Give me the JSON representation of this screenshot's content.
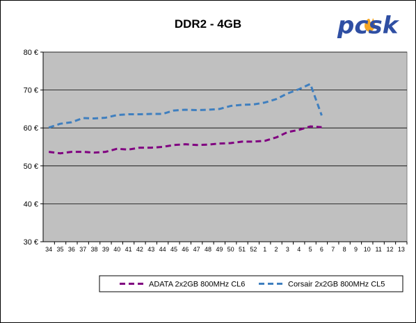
{
  "logo": {
    "text": "pcsk",
    "color": "#2f4fa3",
    "flame_color": "#f5a623"
  },
  "chart_data": {
    "type": "line",
    "title": "DDR2 - 4GB",
    "xlabel": "",
    "ylabel": "",
    "categories": [
      "34",
      "35",
      "36",
      "37",
      "38",
      "39",
      "40",
      "41",
      "42",
      "43",
      "44",
      "45",
      "46",
      "47",
      "48",
      "49",
      "50",
      "51",
      "52",
      "1",
      "2",
      "3",
      "4",
      "5",
      "6",
      "7",
      "8",
      "9",
      "10",
      "11",
      "12",
      "13"
    ],
    "ylim": [
      30,
      80
    ],
    "yticks": [
      {
        "value": 30,
        "label": "30 €"
      },
      {
        "value": 40,
        "label": "40 €"
      },
      {
        "value": 50,
        "label": "50 €"
      },
      {
        "value": 60,
        "label": "60 €"
      },
      {
        "value": 70,
        "label": "70 €"
      },
      {
        "value": 80,
        "label": "80 €"
      }
    ],
    "grid": true,
    "plot_background": "#c0c0c0",
    "legend_position": "bottom",
    "series": [
      {
        "name": "ADATA 2x2GB 800MHz CL6",
        "color": "#800080",
        "style": "dashed",
        "values": [
          53.7,
          53.3,
          53.7,
          53.7,
          53.5,
          53.7,
          54.5,
          54.3,
          54.8,
          54.8,
          55.0,
          55.5,
          55.7,
          55.5,
          55.6,
          55.9,
          56.0,
          56.4,
          56.4,
          56.6,
          57.5,
          58.9,
          59.5,
          60.4,
          60.2,
          null,
          null,
          null,
          null,
          null,
          null,
          null
        ]
      },
      {
        "name": "Corsair 2x2GB 800MHz CL5",
        "color": "#3f7fbf",
        "style": "dashed",
        "values": [
          60.1,
          61.1,
          61.5,
          62.6,
          62.5,
          62.7,
          63.4,
          63.6,
          63.6,
          63.7,
          63.7,
          64.6,
          64.8,
          64.7,
          64.8,
          65.0,
          65.8,
          66.1,
          66.2,
          66.7,
          67.6,
          69.1,
          70.2,
          71.6,
          63.3,
          null,
          null,
          null,
          null,
          null,
          null,
          null
        ]
      }
    ]
  }
}
